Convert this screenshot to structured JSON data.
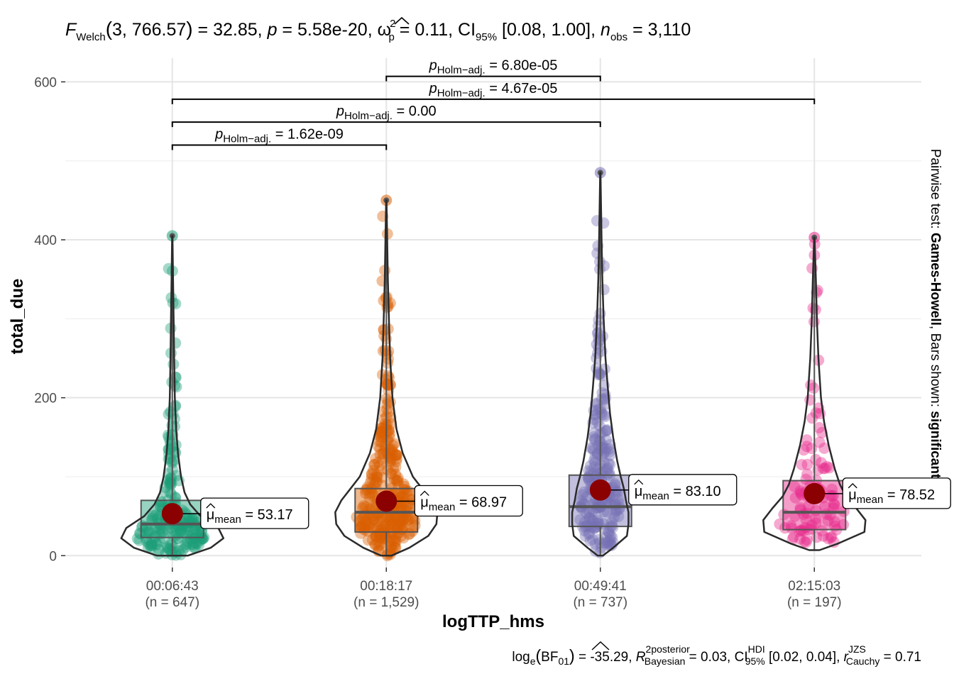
{
  "chart_data": {
    "type": "violin-box-scatter",
    "title": {
      "stat": "F",
      "stat_sub": "Welch",
      "df": "3, 766.57",
      "stat_value": "32.85",
      "p_value": "5.58e-20",
      "effect": "ω",
      "effect_sup": "2",
      "effect_sub": "p",
      "effect_value": "0.11",
      "ci_label": "CI",
      "ci_sub": "95%",
      "ci_value": "[0.08, 1.00]",
      "n_label": "n",
      "n_sub": "obs",
      "n_value": "3,110"
    },
    "xlabel": "logTTP_hms",
    "ylabel": "total_due",
    "ylim": [
      -15,
      630
    ],
    "yticks": [
      0,
      200,
      400,
      600
    ],
    "grid": true,
    "groups": [
      {
        "label": "00:06:43",
        "n": "(n = 647)",
        "color": "#1B9E77",
        "mean": 53.17,
        "mean_label": "53.17",
        "q1": 23,
        "median": 40,
        "q3": 70,
        "whisker_low": 0,
        "whisker_high": 405,
        "max_point": 405,
        "density": [
          [
            0,
            0.3
          ],
          [
            10,
            0.75
          ],
          [
            22,
            1.0
          ],
          [
            35,
            0.9
          ],
          [
            50,
            0.55
          ],
          [
            65,
            0.35
          ],
          [
            80,
            0.24
          ],
          [
            100,
            0.17
          ],
          [
            130,
            0.11
          ],
          [
            160,
            0.075
          ],
          [
            200,
            0.05
          ],
          [
            250,
            0.035
          ],
          [
            300,
            0.025
          ],
          [
            350,
            0.015
          ],
          [
            405,
            0.004
          ]
        ],
        "points_scale": 0.7
      },
      {
        "label": "00:18:17",
        "n": "(n = 1,529)",
        "color": "#D95F02",
        "mean": 68.97,
        "mean_label": "68.97",
        "q1": 30,
        "median": 55,
        "q3": 85,
        "whisker_low": 0,
        "whisker_high": 450,
        "max_point": 450,
        "density": [
          [
            0,
            0.1
          ],
          [
            10,
            0.45
          ],
          [
            25,
            0.82
          ],
          [
            40,
            0.98
          ],
          [
            55,
            1.0
          ],
          [
            70,
            0.88
          ],
          [
            85,
            0.7
          ],
          [
            100,
            0.52
          ],
          [
            130,
            0.32
          ],
          [
            160,
            0.2
          ],
          [
            200,
            0.12
          ],
          [
            250,
            0.075
          ],
          [
            300,
            0.05
          ],
          [
            350,
            0.03
          ],
          [
            400,
            0.018
          ],
          [
            450,
            0.004
          ]
        ],
        "points_scale": 0.6
      },
      {
        "label": "00:49:41",
        "n": "(n = 737)",
        "color": "#7570B3",
        "mean": 83.1,
        "mean_label": "83.10",
        "q1": 37,
        "median": 62,
        "q3": 102,
        "whisker_low": 0,
        "whisker_high": 485,
        "max_point": 485,
        "density": [
          [
            0,
            0.05
          ],
          [
            10,
            0.25
          ],
          [
            25,
            0.52
          ],
          [
            40,
            0.55
          ],
          [
            55,
            0.55
          ],
          [
            70,
            0.5
          ],
          [
            85,
            0.46
          ],
          [
            100,
            0.4
          ],
          [
            120,
            0.33
          ],
          [
            150,
            0.25
          ],
          [
            180,
            0.19
          ],
          [
            210,
            0.15
          ],
          [
            250,
            0.1
          ],
          [
            300,
            0.065
          ],
          [
            350,
            0.04
          ],
          [
            400,
            0.025
          ],
          [
            450,
            0.012
          ],
          [
            485,
            0.004
          ]
        ],
        "points_scale": 0.75
      },
      {
        "label": "02:15:03",
        "n": "(n = 197)",
        "color": "#E7298A",
        "mean": 78.52,
        "mean_label": "78.52",
        "q1": 33,
        "median": 55,
        "q3": 95,
        "whisker_low": 7,
        "whisker_high": 403,
        "max_point": 403,
        "density": [
          [
            7,
            0.1
          ],
          [
            15,
            0.45
          ],
          [
            30,
            0.98
          ],
          [
            45,
            1.0
          ],
          [
            60,
            0.82
          ],
          [
            75,
            0.62
          ],
          [
            90,
            0.5
          ],
          [
            110,
            0.4
          ],
          [
            140,
            0.28
          ],
          [
            170,
            0.19
          ],
          [
            200,
            0.13
          ],
          [
            250,
            0.08
          ],
          [
            300,
            0.05
          ],
          [
            350,
            0.03
          ],
          [
            403,
            0.004
          ]
        ],
        "points_scale": 0.75
      }
    ],
    "pairwise": [
      {
        "from": 0,
        "to": 1,
        "y": 520,
        "p": "1.62e-09"
      },
      {
        "from": 0,
        "to": 2,
        "y": 549,
        "p": "0.00"
      },
      {
        "from": 0,
        "to": 3,
        "y": 578,
        "p": "4.67e-05"
      },
      {
        "from": 1,
        "to": 2,
        "y": 607,
        "p": "6.80e-05"
      }
    ],
    "pairwise_label": {
      "p": "p",
      "sub": "Holm−adj."
    },
    "mean_label": {
      "mu": "μ",
      "sub": "mean"
    },
    "side_label": {
      "prefix": "Pairwise test: ",
      "test": "Games-Howell",
      "middle": ", Bars shown: ",
      "shown": "significant"
    },
    "caption": {
      "log": "log",
      "log_sub": "e",
      "bf": "BF",
      "bf_sub": "01",
      "bf_value": "-35.29",
      "r": "R",
      "r_sup": "2",
      "r_sup2": "posterior",
      "r_sub": "Bayesian",
      "r_value": "0.03",
      "ci": "CI",
      "ci_sup": "HDI",
      "ci_sub": "95%",
      "ci_value": "[0.02, 0.04]",
      "rc": "r",
      "rc_sup": "JZS",
      "rc_sub": "Cauchy",
      "rc_value": "0.71"
    },
    "jitter_seed": 20240511
  }
}
